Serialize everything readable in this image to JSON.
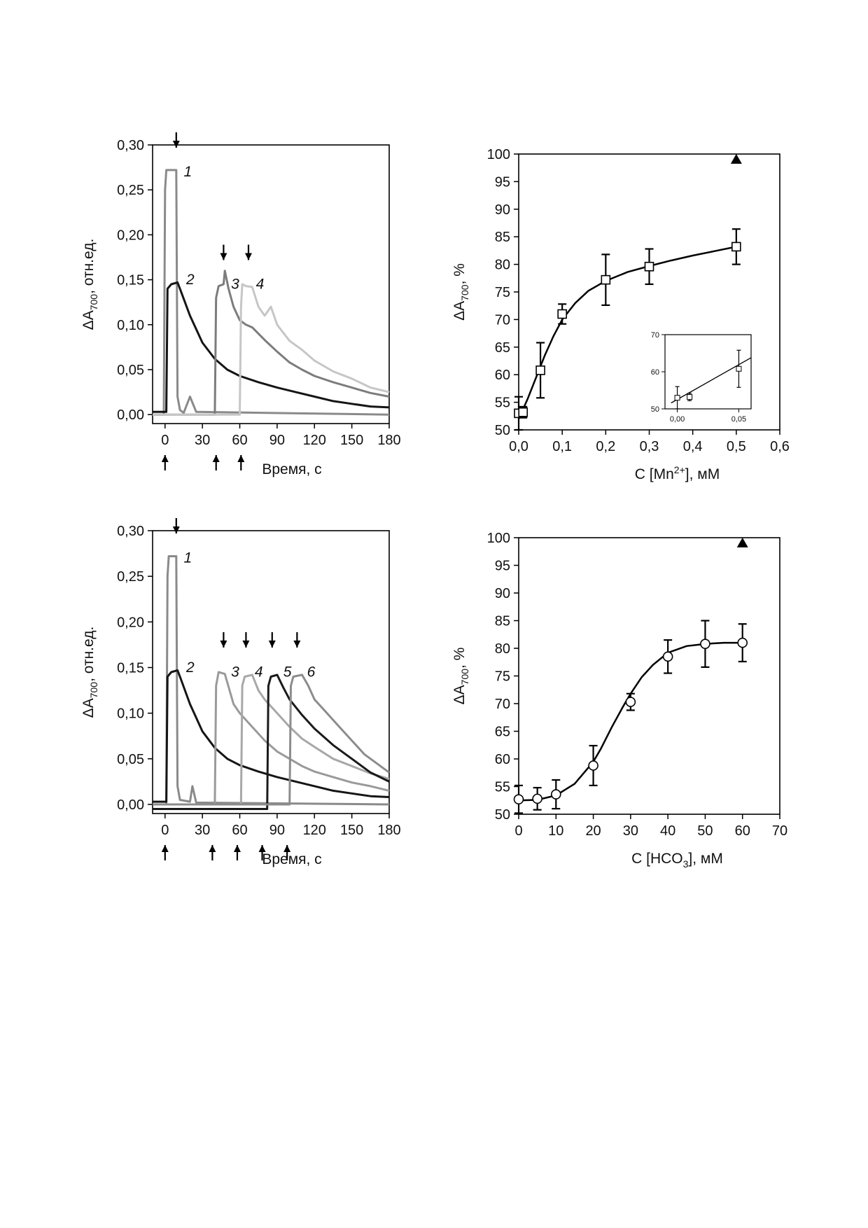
{
  "chart_data": [
    {
      "id": "A",
      "type": "line",
      "title": "",
      "xlabel": "Время, с",
      "ylabel_main": "ΔA",
      "ylabel_sub": "700",
      "ylabel_rest": ", отн.ед.",
      "xlim": [
        -10,
        180
      ],
      "ylim": [
        -0.01,
        0.3
      ],
      "xticks": [
        0,
        30,
        60,
        90,
        120,
        150,
        180
      ],
      "xtick_labels": [
        "0",
        "30",
        "60",
        "90",
        "120",
        "150",
        "180"
      ],
      "yticks": [
        0,
        0.05,
        0.1,
        0.15,
        0.2,
        0.25,
        0.3
      ],
      "ytick_labels": [
        "0,00",
        "0,05",
        "0,10",
        "0,15",
        "0,20",
        "0,25",
        "0,30"
      ],
      "series": [
        {
          "label": "1",
          "color": "#8a8a8a",
          "x": [
            -10,
            -1,
            0,
            1,
            9,
            10,
            12,
            15,
            20,
            25,
            180
          ],
          "y": [
            0.0,
            0.0,
            0.25,
            0.272,
            0.272,
            0.02,
            0.005,
            0.002,
            0.02,
            0.003,
            0.0
          ]
        },
        {
          "label": "2",
          "color": "#151515",
          "x": [
            -10,
            1,
            2,
            5,
            10,
            12,
            20,
            30,
            40,
            50,
            60,
            75,
            90,
            105,
            120,
            135,
            150,
            165,
            180
          ],
          "y": [
            0.003,
            0.003,
            0.14,
            0.145,
            0.147,
            0.14,
            0.11,
            0.08,
            0.062,
            0.05,
            0.043,
            0.036,
            0.03,
            0.025,
            0.02,
            0.015,
            0.012,
            0.009,
            0.008
          ]
        },
        {
          "label": "3",
          "color": "#7c7c7c",
          "x": [
            -10,
            40,
            41,
            43,
            47,
            48,
            51,
            55,
            60,
            65,
            70,
            75,
            80,
            90,
            100,
            110,
            120,
            135,
            150,
            165,
            180
          ],
          "y": [
            0.0,
            0.0,
            0.13,
            0.143,
            0.145,
            0.16,
            0.14,
            0.12,
            0.105,
            0.1,
            0.097,
            0.09,
            0.083,
            0.07,
            0.058,
            0.05,
            0.043,
            0.036,
            0.03,
            0.024,
            0.02
          ]
        },
        {
          "label": "4",
          "color": "#c6c6c6",
          "x": [
            -10,
            60,
            61,
            62,
            65,
            70,
            75,
            80,
            85,
            90,
            100,
            110,
            120,
            135,
            150,
            165,
            180
          ],
          "y": [
            0.0,
            0.0,
            0.12,
            0.145,
            0.143,
            0.142,
            0.12,
            0.11,
            0.12,
            0.1,
            0.082,
            0.072,
            0.06,
            0.048,
            0.04,
            0.03,
            0.025
          ]
        }
      ],
      "curve_labels": [
        {
          "text": "1",
          "x": 15,
          "y": 0.265
        },
        {
          "text": "2",
          "x": 17,
          "y": 0.145
        },
        {
          "text": "3",
          "x": 53,
          "y": 0.14
        },
        {
          "text": "4",
          "x": 73,
          "y": 0.14
        }
      ],
      "down_arrows": [
        {
          "x": 9,
          "y": 0.3
        },
        {
          "x": 47,
          "y": 0.175
        },
        {
          "x": 67,
          "y": 0.175
        }
      ],
      "up_arrows": [
        0,
        41,
        61
      ]
    },
    {
      "id": "B",
      "type": "scatter",
      "title": "",
      "xlabel_main": "C [Mn",
      "xlabel_sup": "2+",
      "xlabel_rest": "], мМ",
      "ylabel_main": "ΔA",
      "ylabel_sub": "700",
      "ylabel_rest": ", %",
      "xlim": [
        0,
        0.6
      ],
      "ylim": [
        50,
        100
      ],
      "xticks": [
        0,
        0.1,
        0.2,
        0.3,
        0.4,
        0.5,
        0.6
      ],
      "xtick_labels": [
        "0,0",
        "0,1",
        "0,2",
        "0,3",
        "0,4",
        "0,5",
        "0,6"
      ],
      "yticks": [
        50,
        55,
        60,
        65,
        70,
        75,
        80,
        85,
        90,
        95,
        100
      ],
      "ytick_labels": [
        "50",
        "55",
        "60",
        "65",
        "70",
        "75",
        "80",
        "85",
        "90",
        "95",
        "100"
      ],
      "marker": "square",
      "points": [
        {
          "x": 0.0,
          "y": 53.0,
          "err": 3.0
        },
        {
          "x": 0.01,
          "y": 53.2,
          "err": 1.0
        },
        {
          "x": 0.05,
          "y": 60.8,
          "err": 5.0
        },
        {
          "x": 0.1,
          "y": 71.0,
          "err": 1.8
        },
        {
          "x": 0.2,
          "y": 77.2,
          "err": 4.6
        },
        {
          "x": 0.3,
          "y": 79.6,
          "err": 3.2
        },
        {
          "x": 0.5,
          "y": 83.2,
          "err": 3.2
        }
      ],
      "fit": {
        "x": [
          0.0,
          0.02,
          0.04,
          0.06,
          0.08,
          0.1,
          0.13,
          0.16,
          0.2,
          0.25,
          0.3,
          0.35,
          0.4,
          0.45,
          0.5
        ],
        "y": [
          52.0,
          55.5,
          59.5,
          63.5,
          67.0,
          70.0,
          73.0,
          75.2,
          77.0,
          78.6,
          79.7,
          80.7,
          81.6,
          82.4,
          83.2
        ]
      },
      "triangle_point": {
        "x": 0.5,
        "y": 99.0
      },
      "inset": {
        "xlim": [
          -0.01,
          0.06
        ],
        "ylim": [
          50,
          70
        ],
        "xticks": [
          0,
          0.05
        ],
        "xtick_labels": [
          "0,00",
          "0,05"
        ],
        "yticks": [
          50,
          60,
          70
        ],
        "ytick_labels": [
          "50",
          "60",
          "70"
        ],
        "points": [
          {
            "x": 0.0,
            "y": 53.0,
            "err": 3.0
          },
          {
            "x": 0.01,
            "y": 53.2,
            "err": 1.0
          },
          {
            "x": 0.05,
            "y": 60.8,
            "err": 5.0
          }
        ],
        "fit": {
          "x": [
            -0.005,
            0.06
          ],
          "y": [
            51.6,
            63.8
          ]
        }
      }
    },
    {
      "id": "C",
      "type": "line",
      "title": "",
      "xlabel": "Время, с",
      "ylabel_main": "ΔA",
      "ylabel_sub": "700",
      "ylabel_rest": ", отн.ед.",
      "xlim": [
        -10,
        180
      ],
      "ylim": [
        -0.01,
        0.3
      ],
      "xticks": [
        0,
        30,
        60,
        90,
        120,
        150,
        180
      ],
      "xtick_labels": [
        "0",
        "30",
        "60",
        "90",
        "120",
        "150",
        "180"
      ],
      "yticks": [
        0,
        0.05,
        0.1,
        0.15,
        0.2,
        0.25,
        0.3
      ],
      "ytick_labels": [
        "0,00",
        "0,05",
        "0,10",
        "0,15",
        "0,20",
        "0,25",
        "0,30"
      ],
      "series": [
        {
          "label": "1",
          "color": "#8a8a8a",
          "x": [
            -10,
            1,
            2,
            3,
            9,
            10,
            12,
            20,
            22,
            25,
            180
          ],
          "y": [
            0.0,
            0.0,
            0.25,
            0.272,
            0.272,
            0.02,
            0.005,
            0.003,
            0.02,
            0.002,
            0.0
          ]
        },
        {
          "label": "2",
          "color": "#151515",
          "x": [
            -10,
            1,
            2,
            5,
            10,
            12,
            20,
            30,
            40,
            50,
            60,
            75,
            90,
            105,
            120,
            135,
            150,
            165,
            180
          ],
          "y": [
            0.003,
            0.003,
            0.14,
            0.145,
            0.147,
            0.14,
            0.11,
            0.08,
            0.062,
            0.05,
            0.043,
            0.036,
            0.03,
            0.025,
            0.02,
            0.015,
            0.012,
            0.009,
            0.008
          ]
        },
        {
          "label": "3",
          "color": "#9a9a9a",
          "x": [
            -10,
            40,
            41,
            43,
            48,
            55,
            60,
            70,
            80,
            90,
            100,
            110,
            120,
            135,
            150,
            165,
            180
          ],
          "y": [
            0.0,
            0.0,
            0.13,
            0.145,
            0.143,
            0.11,
            0.1,
            0.085,
            0.07,
            0.058,
            0.05,
            0.042,
            0.036,
            0.03,
            0.024,
            0.02,
            0.015
          ]
        },
        {
          "label": "4",
          "color": "#a8a8a8",
          "x": [
            -10,
            61,
            62,
            64,
            70,
            75,
            80,
            90,
            100,
            110,
            120,
            135,
            150,
            165,
            180
          ],
          "y": [
            0.0,
            0.0,
            0.13,
            0.14,
            0.142,
            0.125,
            0.115,
            0.1,
            0.085,
            0.072,
            0.063,
            0.05,
            0.042,
            0.034,
            0.028
          ]
        },
        {
          "label": "5",
          "color": "#1a1a1a",
          "x": [
            -10,
            82,
            83,
            85,
            90,
            95,
            100,
            110,
            120,
            135,
            150,
            165,
            180
          ],
          "y": [
            -0.005,
            -0.005,
            0.13,
            0.14,
            0.142,
            0.128,
            0.115,
            0.098,
            0.083,
            0.065,
            0.05,
            0.035,
            0.025
          ]
        },
        {
          "label": "6",
          "color": "#8c8c8c",
          "x": [
            -10,
            100,
            101,
            103,
            110,
            115,
            120,
            130,
            140,
            150,
            160,
            170,
            180
          ],
          "y": [
            0.0,
            0.0,
            0.13,
            0.14,
            0.142,
            0.13,
            0.115,
            0.1,
            0.085,
            0.07,
            0.055,
            0.045,
            0.035
          ]
        }
      ],
      "curve_labels": [
        {
          "text": "1",
          "x": 15,
          "y": 0.265
        },
        {
          "text": "2",
          "x": 17,
          "y": 0.145
        },
        {
          "text": "3",
          "x": 53,
          "y": 0.14
        },
        {
          "text": "4",
          "x": 72,
          "y": 0.14
        },
        {
          "text": "5",
          "x": 95,
          "y": 0.14
        },
        {
          "text": "6",
          "x": 114,
          "y": 0.14
        }
      ],
      "down_arrows": [
        {
          "x": 9,
          "y": 0.3
        },
        {
          "x": 47,
          "y": 0.175
        },
        {
          "x": 65,
          "y": 0.175
        },
        {
          "x": 86,
          "y": 0.175
        },
        {
          "x": 106,
          "y": 0.175
        }
      ],
      "up_arrows": [
        0,
        38,
        58,
        78,
        98
      ]
    },
    {
      "id": "D",
      "type": "scatter",
      "title": "",
      "xlabel_main": "C [HCO",
      "xlabel_sub": "3",
      "xlabel_rest": "], мМ",
      "ylabel_main": "ΔA",
      "ylabel_sub": "700",
      "ylabel_rest": ", %",
      "xlim": [
        0,
        70
      ],
      "ylim": [
        50,
        100
      ],
      "xticks": [
        0,
        10,
        20,
        30,
        40,
        50,
        60,
        70
      ],
      "xtick_labels": [
        "0",
        "10",
        "20",
        "30",
        "40",
        "50",
        "60",
        "70"
      ],
      "yticks": [
        50,
        55,
        60,
        65,
        70,
        75,
        80,
        85,
        90,
        95,
        100
      ],
      "ytick_labels": [
        "50",
        "55",
        "60",
        "65",
        "70",
        "75",
        "80",
        "85",
        "90",
        "95",
        "100"
      ],
      "marker": "circle",
      "points": [
        {
          "x": 0,
          "y": 52.7,
          "err": 2.5
        },
        {
          "x": 5,
          "y": 52.8,
          "err": 2.0
        },
        {
          "x": 10,
          "y": 53.6,
          "err": 2.6
        },
        {
          "x": 20,
          "y": 58.8,
          "err": 3.6
        },
        {
          "x": 30,
          "y": 70.3,
          "err": 1.5
        },
        {
          "x": 40,
          "y": 78.5,
          "err": 3.0
        },
        {
          "x": 50,
          "y": 80.8,
          "err": 4.2
        },
        {
          "x": 60,
          "y": 81.0,
          "err": 3.4
        }
      ],
      "fit": {
        "x": [
          0,
          5,
          10,
          15,
          20,
          22,
          25,
          28,
          30,
          33,
          36,
          40,
          45,
          50,
          55,
          60
        ],
        "y": [
          52.5,
          52.6,
          53.4,
          55.5,
          59.5,
          61.8,
          65.8,
          69.5,
          71.8,
          74.8,
          77.0,
          79.2,
          80.4,
          80.8,
          81.0,
          81.0
        ]
      },
      "triangle_point": {
        "x": 60,
        "y": 99.0
      }
    }
  ]
}
